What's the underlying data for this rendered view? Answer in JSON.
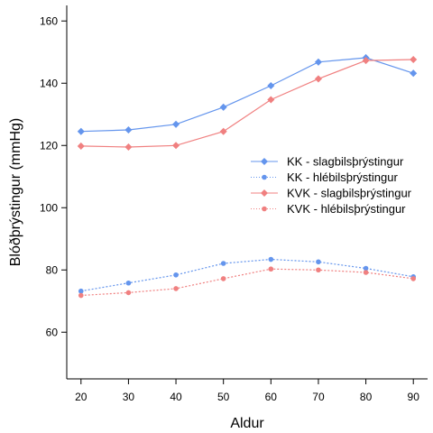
{
  "chart_data": {
    "type": "line",
    "title": "",
    "xlabel": "Aldur",
    "ylabel": "Blóðþrýstingur (mmHg)",
    "x": [
      20,
      30,
      40,
      50,
      60,
      70,
      80,
      90
    ],
    "xticks": [
      20,
      30,
      40,
      50,
      60,
      70,
      80,
      90
    ],
    "yticks": [
      60,
      80,
      100,
      120,
      140,
      160
    ],
    "xlim": [
      17,
      93
    ],
    "ylim": [
      45,
      165
    ],
    "grid": false,
    "legend_position": "right",
    "series": [
      {
        "name": "KK - slagbilsþrýstingur",
        "color": "#6495ED",
        "line_style": "solid",
        "marker": "diamond",
        "values": [
          124.5,
          125,
          126.8,
          132.3,
          139.2,
          146.8,
          148.2,
          143.2
        ]
      },
      {
        "name": "KK - hlébilsþrýstingur",
        "color": "#6495ED",
        "line_style": "dotted",
        "marker": "circle",
        "values": [
          73.2,
          75.8,
          78.4,
          82.1,
          83.4,
          82.6,
          80.5,
          77.8
        ]
      },
      {
        "name": "KVK - slagbilsþrýstingur",
        "color": "#F08080",
        "line_style": "solid",
        "marker": "diamond",
        "values": [
          119.8,
          119.5,
          120.0,
          124.5,
          134.7,
          141.4,
          147.3,
          147.6
        ]
      },
      {
        "name": "KVK - hlébilsþrýstingur",
        "color": "#F08080",
        "line_style": "dotted",
        "marker": "circle",
        "values": [
          71.8,
          72.7,
          74.0,
          77.2,
          80.3,
          80.0,
          79.2,
          77.2
        ]
      }
    ]
  }
}
